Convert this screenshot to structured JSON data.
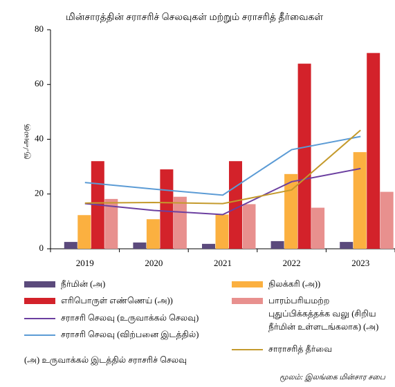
{
  "chart_data": {
    "type": "bar",
    "title": "மின்சாரத்தின் சராசரிச் செலவுகள் மற்றும் சராசரித் தீர்வைகள்",
    "y_label": "ரூ./அலகு",
    "categories": [
      "2019",
      "2020",
      "2021",
      "2022",
      "2023"
    ],
    "ylim": [
      0,
      80
    ],
    "yticks": [
      0,
      20,
      40,
      60,
      80
    ],
    "series": [
      {
        "name": "நீர்மின் (அ)",
        "type": "bar",
        "color": "#5b4a7c",
        "values": [
          2.5,
          2.3,
          1.8,
          2.8,
          2.5
        ]
      },
      {
        "name": "நிலக்கரி (அ))",
        "type": "bar",
        "color": "#fbb040",
        "values": [
          12.3,
          10.8,
          12.5,
          27.3,
          35.3
        ]
      },
      {
        "name": "எரிபொருள் எண்ணெய் (அ))",
        "type": "bar",
        "color": "#d3222a",
        "values": [
          32,
          29,
          32,
          67.6,
          71.5
        ]
      },
      {
        "name": "பாரம்பரியமற்ற புதுப்பிக்கத்தக்க வலு (சிறிய நீர்மின் உள்ளடங்கலாக) (அ)",
        "type": "bar",
        "color": "#e8908e",
        "values": [
          18.2,
          19,
          16.3,
          15,
          20.8
        ]
      },
      {
        "name": "சராசரி செலவு (உருவாக்கல் செலவு)",
        "type": "line",
        "color": "#6b3fa0",
        "values": [
          16.5,
          14,
          12.5,
          24.5,
          29.3
        ]
      },
      {
        "name": "சராசரி செலவு (விற்பனை இடத்தில்)",
        "type": "line",
        "color": "#5b9bd5",
        "values": [
          24.2,
          21.8,
          19.6,
          36.2,
          41
        ]
      },
      {
        "name": "சாராசரித் தீர்வை",
        "type": "line",
        "color": "#c49a2c",
        "values": [
          16.7,
          16.9,
          16.5,
          21.5,
          43.3
        ]
      }
    ],
    "footnote": "(அ) உருவாக்கல் இடத்தில் சராசரிச் செலவு",
    "source": "மூலம்: இலங்கை மின்சார சபை"
  }
}
